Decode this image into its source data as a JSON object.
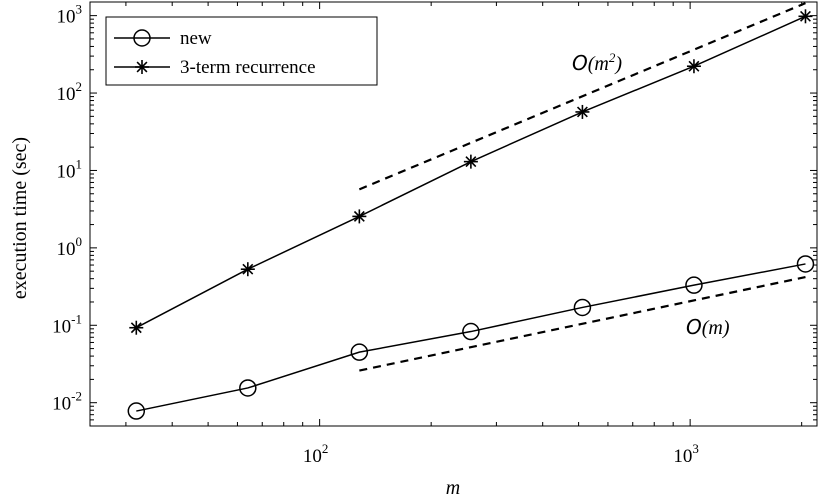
{
  "chart_data": {
    "type": "line",
    "xscale": "log",
    "yscale": "log",
    "xlabel": "m",
    "ylabel": "execution time (sec)",
    "xlim": [
      24,
      2200
    ],
    "ylim": [
      0.005,
      1500
    ],
    "x_ticks": [
      {
        "value": 100,
        "base": "10",
        "exp": "2"
      },
      {
        "value": 1000,
        "base": "10",
        "exp": "3"
      }
    ],
    "y_ticks": [
      {
        "value": 0.01,
        "base": "10",
        "exp": "-2"
      },
      {
        "value": 0.1,
        "base": "10",
        "exp": "-1"
      },
      {
        "value": 1,
        "base": "10",
        "exp": "0"
      },
      {
        "value": 10,
        "base": "10",
        "exp": "1"
      },
      {
        "value": 100,
        "base": "10",
        "exp": "2"
      },
      {
        "value": 1000,
        "base": "10",
        "exp": "3"
      }
    ],
    "grid": false,
    "legend_placement": "top-left",
    "series": [
      {
        "name": "new",
        "marker": "circle",
        "x": [
          32,
          64,
          128,
          256,
          512,
          1024,
          2048
        ],
        "y": [
          0.0078,
          0.0155,
          0.045,
          0.083,
          0.17,
          0.33,
          0.62
        ]
      },
      {
        "name": "3-term recurrence",
        "marker": "asterisk",
        "x": [
          32,
          64,
          128,
          256,
          512,
          1024,
          2048
        ],
        "y": [
          0.093,
          0.53,
          2.55,
          13,
          57,
          222,
          980
        ]
      }
    ],
    "reference_lines": [
      {
        "label_main": "O",
        "label_rest": "(m",
        "label_sup": "2",
        "label_close": ")",
        "x": [
          128,
          2048
        ],
        "y": [
          5.7,
          1450
        ]
      },
      {
        "label_main": "O",
        "label_rest": "(m)",
        "label_sup": "",
        "label_close": "",
        "x": [
          128,
          2048
        ],
        "y": [
          0.026,
          0.42
        ]
      }
    ]
  }
}
